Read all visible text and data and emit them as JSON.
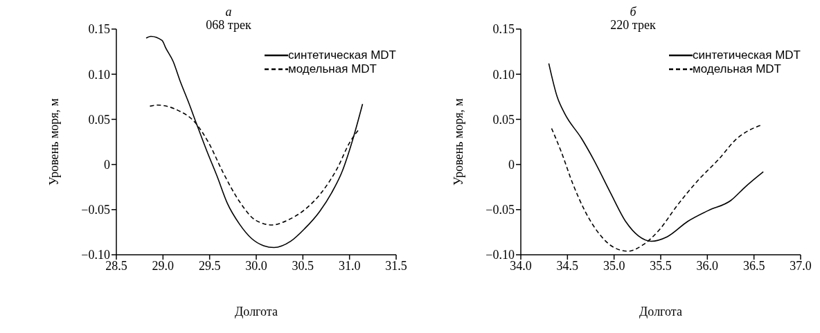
{
  "chart_data": [
    {
      "type": "line",
      "title": "а",
      "subtitle": "068 трек",
      "xlabel": "Долгота",
      "ylabel": "Уровень моря, м",
      "xlim": [
        28.5,
        31.5
      ],
      "ylim": [
        -0.1,
        0.15
      ],
      "xticks": [
        28.5,
        {
          "value": 29,
          "label": "29.0"
        },
        29.5,
        {
          "value": 30,
          "label": "30.0"
        },
        30.5,
        {
          "value": 31,
          "label": "31.0"
        },
        31.5
      ],
      "yticks": [
        {
          "value": -0.1,
          "label": "−0.10"
        },
        {
          "value": -0.05,
          "label": "−0.05"
        },
        0,
        0.05,
        {
          "value": 0.1,
          "label": "0.10"
        },
        0.15
      ],
      "legend": "top right",
      "grid": false,
      "series": [
        {
          "name": "синтетическая MDT",
          "color": "#000000",
          "line_style": "solid",
          "x": [
            28.82,
            28.87,
            28.99,
            29.03,
            29.11,
            29.18,
            29.27,
            29.36,
            29.47,
            29.58,
            29.69,
            29.82,
            29.95,
            30.08,
            30.19,
            30.37,
            30.52,
            30.68,
            30.81,
            30.92,
            31.03,
            31.14
          ],
          "values": [
            0.14,
            0.142,
            0.1375,
            0.129,
            0.114,
            0.0935,
            0.07,
            0.045,
            0.015,
            -0.013,
            -0.043,
            -0.066,
            -0.082,
            -0.09,
            -0.092,
            -0.085,
            -0.071,
            -0.052,
            -0.031,
            -0.008,
            0.026,
            0.067
          ]
        },
        {
          "name": "модельная MDT",
          "color": "#000000",
          "line_style": "dashed",
          "x": [
            28.86,
            28.94,
            29.16,
            29.34,
            29.49,
            29.64,
            29.82,
            29.99,
            30.17,
            30.34,
            30.52,
            30.7,
            30.87,
            31.0,
            31.11
          ],
          "values": [
            0.0646,
            0.0658,
            0.06,
            0.047,
            0.024,
            -0.008,
            -0.041,
            -0.0615,
            -0.067,
            -0.0615,
            -0.05,
            -0.031,
            -0.004,
            0.024,
            0.04
          ]
        }
      ]
    },
    {
      "type": "line",
      "title": "б",
      "subtitle": "220 трек",
      "xlabel": "Долгота",
      "ylabel": "Уровень моря, м",
      "xlim": [
        34,
        37
      ],
      "ylim": [
        -0.1,
        0.15
      ],
      "xticks": [
        {
          "value": 34,
          "label": "34.0"
        },
        34.5,
        {
          "value": 35,
          "label": "35.0"
        },
        35.5,
        {
          "value": 36,
          "label": "36.0"
        },
        36.5,
        {
          "value": 37,
          "label": "37.0"
        }
      ],
      "yticks": [
        {
          "value": -0.1,
          "label": "−0.10"
        },
        {
          "value": -0.05,
          "label": "−0.05"
        },
        0,
        0.05,
        {
          "value": 0.1,
          "label": "0.10"
        },
        0.15
      ],
      "legend": "top right",
      "grid": false,
      "series": [
        {
          "name": "синтетическая MDT",
          "color": "#000000",
          "line_style": "solid",
          "x": [
            34.3,
            34.39,
            34.47,
            34.65,
            34.78,
            34.96,
            35.13,
            35.26,
            35.4,
            35.57,
            35.79,
            36.01,
            36.25,
            36.41,
            36.6
          ],
          "values": [
            0.112,
            0.075,
            0.0565,
            0.029,
            0.0056,
            -0.031,
            -0.064,
            -0.079,
            -0.085,
            -0.08,
            -0.063,
            -0.051,
            -0.04,
            -0.0245,
            -0.008
          ]
        },
        {
          "name": "модельная MDT",
          "color": "#000000",
          "line_style": "dashed",
          "x": [
            34.33,
            34.43,
            34.56,
            34.69,
            34.85,
            35.0,
            35.15,
            35.31,
            35.48,
            35.68,
            35.9,
            36.12,
            36.32,
            36.45,
            36.59
          ],
          "values": [
            0.04,
            0.015,
            -0.022,
            -0.052,
            -0.078,
            -0.092,
            -0.096,
            -0.089,
            -0.073,
            -0.045,
            -0.0176,
            0.0056,
            0.029,
            0.038,
            0.044
          ]
        }
      ]
    }
  ]
}
